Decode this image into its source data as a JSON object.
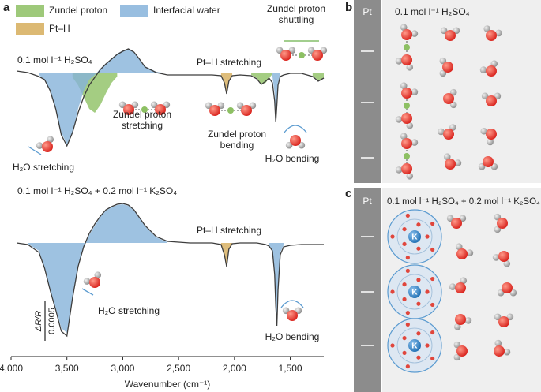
{
  "chart_data": [
    {
      "type": "line",
      "x": [
        3950,
        3850,
        3750,
        3700,
        3650,
        3600,
        3550,
        3500,
        3450,
        3400,
        3350,
        3300,
        3250,
        3200,
        3150,
        3100,
        3050,
        3000,
        2950,
        2900,
        2850,
        2800,
        2700,
        2600,
        2400,
        2200,
        2120,
        2090,
        2070,
        2050,
        2020,
        1950,
        1850,
        1800,
        1760,
        1720,
        1690,
        1660,
        1640,
        1630,
        1620,
        1610,
        1590,
        1560,
        1500,
        1400,
        1300,
        1250,
        1200
      ],
      "xlim": [
        4000,
        1200
      ],
      "ylim": [
        -0.0012,
        0.0004
      ],
      "series": [
        {
          "name": "0.1 mol l⁻¹ H₂SO₄",
          "color": "#3d3d3d",
          "values": [
            3e-05,
            1e-05,
            -4e-05,
            -8e-05,
            -0.00022,
            -0.00045,
            -0.00078,
            -0.00092,
            -0.00075,
            -0.0005,
            -0.0003,
            -0.00015,
            -5e-05,
            5e-05,
            0.00012,
            0.00018,
            0.00024,
            0.00028,
            0.00031,
            0.00027,
            0.00018,
            8e-05,
            1e-05,
            -2e-05,
            -2e-05,
            -2e-05,
            -3e-05,
            -0.00012,
            -0.00026,
            -0.0001,
            -3e-05,
            -2e-05,
            -3e-05,
            -7e-05,
            -0.00014,
            -0.0001,
            -6e-05,
            -0.00012,
            -0.00035,
            -0.00062,
            -0.0004,
            -0.00015,
            -4e-05,
            -2e-05,
            0,
            0,
            -4e-05,
            -0.0001,
            -6e-05
          ]
        },
        {
          "name": "Zundel proton",
          "color": "#8dc063",
          "area": true,
          "values": [
            null,
            null,
            null,
            null,
            null,
            null,
            null,
            null,
            -5e-05,
            -0.00015,
            -0.0003,
            -0.00045,
            -0.0005,
            -0.0004,
            -0.00025,
            -0.00012,
            -4e-05,
            null,
            null,
            null,
            null,
            null,
            null,
            null,
            null,
            null,
            null,
            null,
            null,
            null,
            null,
            null,
            -2e-05,
            -6e-05,
            -0.00014,
            -0.00012,
            -6e-05,
            -1e-05,
            null,
            null,
            null,
            null,
            null,
            null,
            null,
            null,
            -3e-05,
            -9e-05,
            -6e-05
          ]
        },
        {
          "name": "Interfacial water",
          "color": "#86b3da",
          "area": true,
          "values": [
            null,
            null,
            -2e-05,
            -8e-05,
            -0.00022,
            -0.00045,
            -0.00075,
            -0.0009,
            -0.00075,
            -0.00045,
            -0.00022,
            -8e-05,
            -2e-05,
            6e-05,
            0.00013,
            0.00019,
            0.00025,
            0.00029,
            0.00031,
            0.00027,
            0.00018,
            9e-05,
            2e-05,
            0,
            null,
            null,
            null,
            null,
            null,
            null,
            null,
            null,
            null,
            null,
            null,
            null,
            null,
            -4e-05,
            -0.00025,
            -0.00055,
            -0.00035,
            -0.00012,
            -2e-05,
            null,
            null,
            null,
            null,
            null,
            null
          ]
        },
        {
          "name": "Pt–H",
          "color": "#d6ad5a",
          "area": true,
          "values": [
            null,
            null,
            null,
            null,
            null,
            null,
            null,
            null,
            null,
            null,
            null,
            null,
            null,
            null,
            null,
            null,
            null,
            null,
            null,
            null,
            null,
            null,
            null,
            null,
            null,
            null,
            -2e-05,
            -0.00011,
            -0.00025,
            -9e-05,
            -2e-05,
            null,
            null,
            null,
            null,
            null,
            null,
            null,
            null,
            null,
            null,
            null,
            null,
            null,
            null,
            null,
            null,
            null,
            null
          ]
        }
      ],
      "annotations": [
        "Pt–H stretching",
        "Zundel proton shuttling",
        "Zundel proton stretching",
        "Zundel proton bending",
        "H₂O stretching",
        "H₂O bending"
      ]
    },
    {
      "type": "line",
      "x": [
        3950,
        3850,
        3750,
        3700,
        3650,
        3600,
        3550,
        3500,
        3450,
        3400,
        3350,
        3300,
        3250,
        3200,
        3150,
        3100,
        3050,
        3000,
        2950,
        2900,
        2850,
        2800,
        2700,
        2600,
        2400,
        2200,
        2120,
        2090,
        2070,
        2050,
        2020,
        1950,
        1850,
        1800,
        1760,
        1720,
        1690,
        1660,
        1640,
        1630,
        1620,
        1610,
        1590,
        1560,
        1500,
        1400,
        1300,
        1250,
        1200
      ],
      "xlim": [
        4000,
        1200
      ],
      "ylim": [
        -0.0013,
        0.0006
      ],
      "xticks": [
        {
          "value": 4000,
          "label": "4,000"
        },
        {
          "value": 3500,
          "label": "3,500"
        },
        {
          "value": 3000,
          "label": "3,000"
        },
        {
          "value": 2500,
          "label": "2,500"
        },
        {
          "value": 2000,
          "label": "2,000"
        },
        {
          "value": 1500,
          "label": "1,500"
        }
      ],
      "xlabel": "Wavenumber (cm⁻¹)",
      "scale_bar": {
        "label": "ΔR/R",
        "value": 0.0005
      },
      "series": [
        {
          "name": "0.1 mol l⁻¹ H₂SO₄ + 0.2 mol l⁻¹ K₂SO₄",
          "color": "#3d3d3d",
          "values": [
            0,
            -2e-05,
            -0.00012,
            -0.00032,
            -0.0006,
            -0.00085,
            -0.00112,
            -0.00118,
            -0.0007,
            -0.0003,
            -5e-05,
            0.00012,
            0.00024,
            0.00034,
            0.00042,
            0.00046,
            0.00049,
            0.0005,
            0.00048,
            0.00042,
            0.00032,
            0.00022,
            8e-05,
            2e-05,
            0,
            0,
            -2e-05,
            -0.00015,
            -0.0003,
            -8e-05,
            -1e-05,
            0,
            0,
            0,
            -1e-05,
            -2e-05,
            -4e-05,
            -0.0001,
            -0.0004,
            -0.0008,
            -0.00105,
            -0.0006,
            -0.00015,
            -5e-05,
            -3e-05,
            -2e-05,
            -2e-05,
            -2e-05,
            -2e-05
          ]
        },
        {
          "color": "#86b3da",
          "area": true,
          "values": [
            null,
            -1e-05,
            -0.0001,
            -0.0003,
            -0.00058,
            -0.00083,
            -0.00108,
            -0.00114,
            -0.00068,
            -0.0003,
            -6e-05,
            0.0001,
            0.00022,
            0.00033,
            0.00041,
            0.00045,
            0.00048,
            0.00049,
            0.00047,
            0.00041,
            0.00031,
            0.00021,
            7e-05,
            1e-05,
            null,
            null,
            null,
            null,
            null,
            null,
            null,
            null,
            null,
            null,
            null,
            null,
            -3e-05,
            -9e-05,
            -0.00038,
            -0.00075,
            -0.001,
            -0.00055,
            -0.00012,
            -3e-05,
            null,
            null,
            null,
            null,
            null
          ]
        },
        {
          "color": "#d6ad5a",
          "area": true,
          "values": [
            null,
            null,
            null,
            null,
            null,
            null,
            null,
            null,
            null,
            null,
            null,
            null,
            null,
            null,
            null,
            null,
            null,
            null,
            null,
            null,
            null,
            null,
            null,
            null,
            null,
            null,
            -2e-05,
            -0.00014,
            -0.00028,
            -8e-05,
            -1e-05,
            null,
            null,
            null,
            null,
            null,
            null,
            null,
            null,
            null,
            null,
            null,
            null,
            null,
            null,
            null,
            null,
            null,
            null
          ]
        }
      ],
      "annotations": [
        "Pt–H stretching",
        "H₂O stretching",
        "H₂O bending"
      ]
    }
  ],
  "panels": {
    "a": {
      "label": "a"
    },
    "b": {
      "label": "b",
      "electrode": "Pt",
      "electrolyte": "0.1 mol l⁻¹ H₂SO₄"
    },
    "c": {
      "label": "c",
      "electrode": "Pt",
      "electrolyte": "0.1 mol l⁻¹ H₂SO₄ + 0.2 mol l⁻¹ K₂SO₄",
      "ion": "K"
    }
  }
}
